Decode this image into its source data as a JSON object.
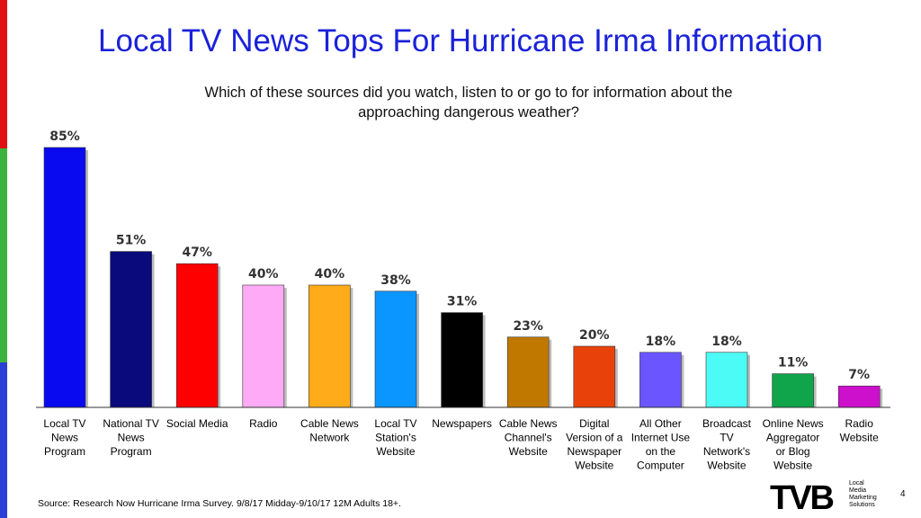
{
  "title": "Local TV News Tops For Hurricane Irma Information",
  "subtitle_line1": "Which of these sources did you watch, listen to or go to for information about the",
  "subtitle_line2": "approaching dangerous weather?",
  "footnote": "Source: Research Now Hurricane Irma Survey. 9/8/17 Midday-9/10/17 12M Adults 18+.",
  "page_number": "4",
  "logo": {
    "mark": "TVB",
    "line1": "Local",
    "line2": "Media",
    "line3": "Marketing",
    "line4": "Solutions"
  },
  "chart_data": {
    "type": "bar",
    "ylim": [
      0,
      100
    ],
    "grid": false,
    "categories": [
      [
        "Local TV",
        "News",
        "Program"
      ],
      [
        "National TV",
        "News",
        "Program"
      ],
      [
        "Social Media"
      ],
      [
        "Radio"
      ],
      [
        "Cable News",
        "Network"
      ],
      [
        "Local TV",
        "Station's",
        "Website"
      ],
      [
        "Newspapers"
      ],
      [
        "Cable News",
        "Channel's",
        "Website"
      ],
      [
        "Digital",
        "Version of a",
        "Newspaper",
        "Website"
      ],
      [
        "All Other",
        "Internet Use",
        "on the",
        "Computer"
      ],
      [
        "Broadcast",
        "TV",
        "Network's",
        "Website"
      ],
      [
        "Online News",
        "Aggregator",
        "or Blog",
        "Website"
      ],
      [
        "Radio",
        "Website"
      ]
    ],
    "values": [
      85,
      51,
      47,
      40,
      40,
      38,
      31,
      23,
      20,
      18,
      18,
      11,
      7
    ],
    "data_labels": [
      "85%",
      "51%",
      "47%",
      "40%",
      "40%",
      "38%",
      "31%",
      "23%",
      "20%",
      "18%",
      "18%",
      "11%",
      "7%"
    ],
    "colors": [
      "#0a0af0",
      "#0a0a7c",
      "#ff0000",
      "#ffaaf6",
      "#ffab1a",
      "#0a95ff",
      "#000000",
      "#c07800",
      "#e8420a",
      "#6a55ff",
      "#4cfaf6",
      "#10a54a",
      "#cc10cc"
    ]
  }
}
